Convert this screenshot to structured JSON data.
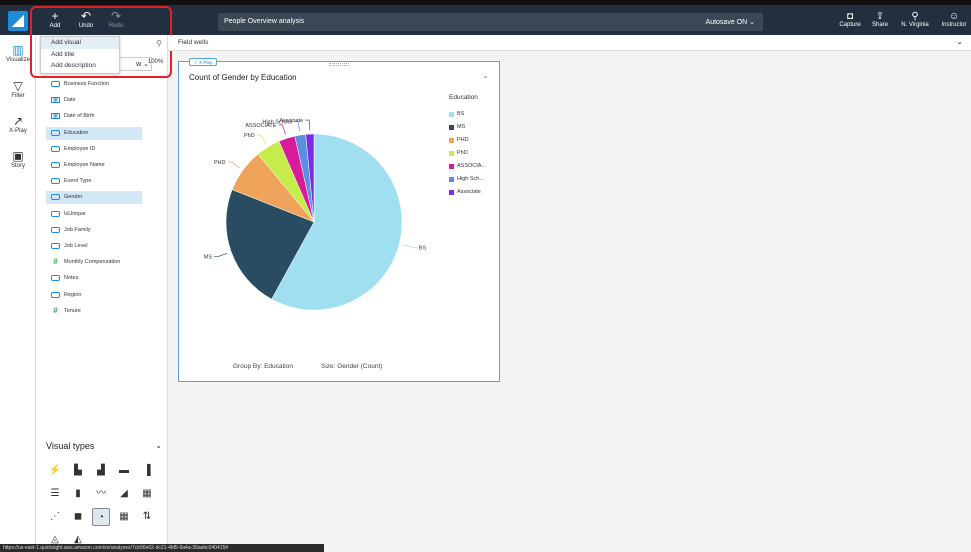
{
  "toolbar": {
    "add_label": "Add",
    "undo_label": "Undo",
    "redo_label": "Redo",
    "analysis_title": "People Overview analysis",
    "autosave": "Autosave ON",
    "capture_label": "Capture",
    "share_label": "Share",
    "region_label": "N. Virginia",
    "user_label": "Instructor"
  },
  "add_menu": {
    "items": [
      "Add visual",
      "Add title",
      "Add description"
    ]
  },
  "leftnav": {
    "items": [
      {
        "label": "Visualize",
        "icon": "bar-chart-icon"
      },
      {
        "label": "Filter",
        "icon": "filter-icon"
      },
      {
        "label": "X-Play",
        "icon": "line-chart-icon"
      },
      {
        "label": "Story",
        "icon": "story-icon"
      }
    ]
  },
  "field_panel": {
    "zoom": "100%",
    "dataset_suffix": "w",
    "fields": [
      {
        "label": "Business Function",
        "type": "dimension",
        "selected": false
      },
      {
        "label": "Date",
        "type": "date",
        "selected": false
      },
      {
        "label": "Date of Birth",
        "type": "date",
        "selected": false
      },
      {
        "label": "Education",
        "type": "dimension",
        "selected": true
      },
      {
        "label": "Employee ID",
        "type": "dimension",
        "selected": false
      },
      {
        "label": "Employee Name",
        "type": "dimension",
        "selected": false
      },
      {
        "label": "Event Type",
        "type": "dimension",
        "selected": false
      },
      {
        "label": "Gender",
        "type": "dimension",
        "selected": true
      },
      {
        "label": "IsUnique",
        "type": "dimension",
        "selected": false
      },
      {
        "label": "Job Family",
        "type": "dimension",
        "selected": false
      },
      {
        "label": "Job Level",
        "type": "dimension",
        "selected": false
      },
      {
        "label": "Monthly Compensation",
        "type": "measure",
        "selected": false
      },
      {
        "label": "Notes",
        "type": "dimension",
        "selected": false
      },
      {
        "label": "Region",
        "type": "dimension",
        "selected": false
      },
      {
        "label": "Tenure",
        "type": "measure",
        "selected": false
      }
    ]
  },
  "visual_types": {
    "title": "Visual types",
    "icons": [
      "⚡",
      "▙",
      "▟",
      "▬",
      "▐",
      "☰",
      "▮",
      "〰",
      "◢",
      "▦",
      "⋰",
      "◼",
      "◔",
      "▦",
      "⇅",
      "◬",
      "◭"
    ]
  },
  "field_wells": {
    "label": "Field wells"
  },
  "visual": {
    "badge": "X-Play",
    "title": "Count of Gender by Education",
    "group_by": "Group By: Education",
    "size_by": "Size: Gender (Count)"
  },
  "chart_data": {
    "type": "pie",
    "title": "Count of Gender by Education",
    "legend_title": "Education",
    "legend_position": "right",
    "categories": [
      "BS",
      "MS",
      "PHD",
      "PhD",
      "ASSOCIATE",
      "High School",
      "Associate"
    ],
    "legend_labels": [
      "BS",
      "MS",
      "PHD",
      "PhD",
      "ASSOCIA...",
      "High Sch...",
      "Associate"
    ],
    "values": [
      58,
      23,
      8,
      4.5,
      3,
      2,
      1.5
    ],
    "colors": [
      "#9fdff0",
      "#2a4c62",
      "#f0a35a",
      "#c5ec4a",
      "#d81b9a",
      "#5b8fe0",
      "#7b2ee0"
    ]
  },
  "status_bar": {
    "url": "https://us-east-1.quicksight.aws.amazon.com/sn/analyses/7cb90e02-dc21-4bf5-9a4a-39aebc040415#"
  }
}
